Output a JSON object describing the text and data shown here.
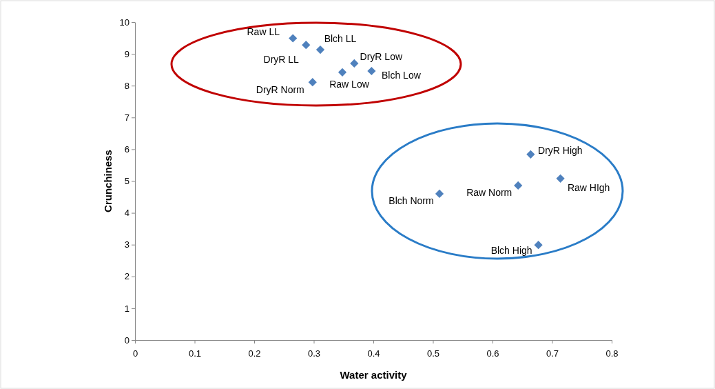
{
  "chart_data": {
    "type": "scatter",
    "xlabel": "Water activity",
    "ylabel": "Crunchiness",
    "xlim": [
      0,
      0.8
    ],
    "xticks": [
      0,
      0.1,
      0.2,
      0.3,
      0.4,
      0.5,
      0.6,
      0.7,
      0.8
    ],
    "ylim": [
      0,
      10
    ],
    "yticks": [
      0,
      1,
      2,
      3,
      4,
      5,
      6,
      7,
      8,
      9,
      10
    ],
    "grid": false,
    "marker": "diamond",
    "series": [
      {
        "color": "#4f81bd",
        "x": [
          0.265,
          0.287,
          0.311,
          0.368,
          0.348,
          0.397,
          0.298,
          0.664,
          0.714,
          0.643,
          0.511,
          0.677
        ],
        "values": [
          9.49,
          9.28,
          9.13,
          8.7,
          8.42,
          8.46,
          8.11,
          5.84,
          5.08,
          4.86,
          4.6,
          2.99
        ]
      }
    ],
    "annotations": [
      {
        "text": "Raw LL",
        "x": 0.265,
        "y": 9.49
      },
      {
        "text": "DryR LL",
        "x": 0.287,
        "y": 9.28
      },
      {
        "text": "Blch LL",
        "x": 0.311,
        "y": 9.13
      },
      {
        "text": "DryR Low",
        "x": 0.368,
        "y": 8.7
      },
      {
        "text": "Raw Low",
        "x": 0.348,
        "y": 8.42
      },
      {
        "text": "Blch Low",
        "x": 0.397,
        "y": 8.46
      },
      {
        "text": "DryR Norm",
        "x": 0.298,
        "y": 8.11
      },
      {
        "text": "DryR High",
        "x": 0.664,
        "y": 5.84
      },
      {
        "text": "Raw HIgh",
        "x": 0.714,
        "y": 5.08
      },
      {
        "text": "Raw Norm",
        "x": 0.643,
        "y": 4.86
      },
      {
        "text": "Blch Norm",
        "x": 0.511,
        "y": 4.6
      },
      {
        "text": "Blch High",
        "x": 0.677,
        "y": 2.99
      }
    ]
  }
}
